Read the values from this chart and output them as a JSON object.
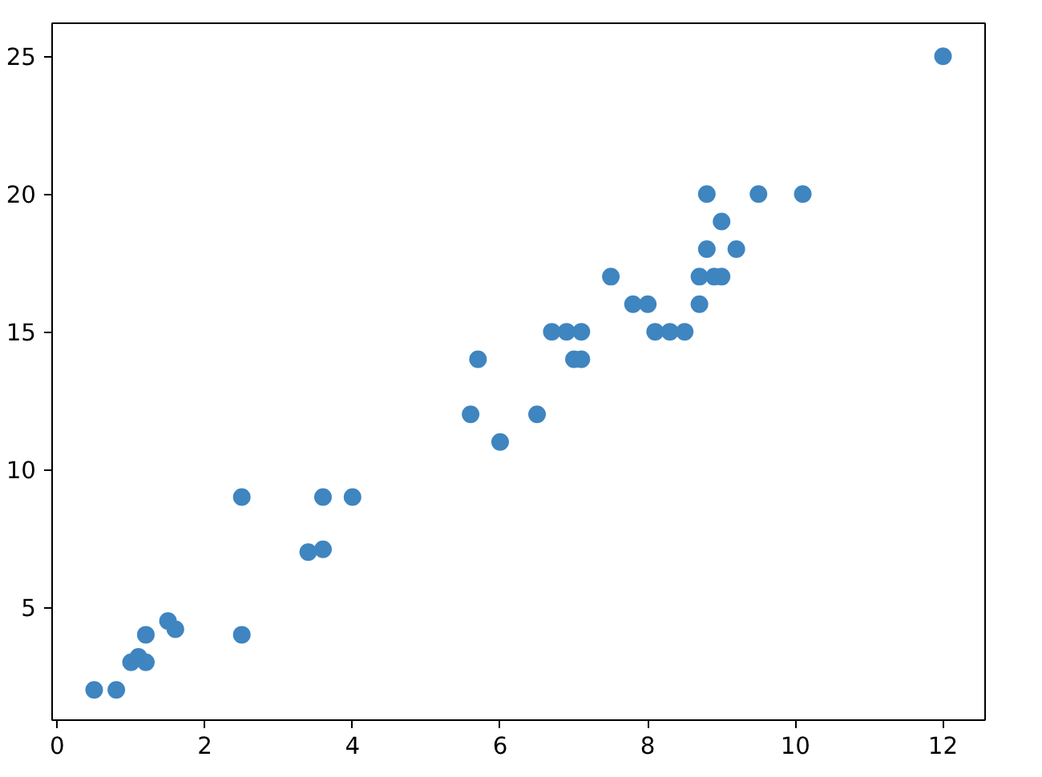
{
  "chart_data": {
    "type": "scatter",
    "marker": "circle",
    "grid": false,
    "xlim": [
      -0.07,
      12.57
    ],
    "ylim": [
      0.9,
      26.2
    ],
    "xticks": [
      0,
      2,
      4,
      6,
      8,
      10,
      12
    ],
    "yticks": [
      5,
      10,
      15,
      20,
      25
    ],
    "series": [
      {
        "color": "#3f85c0",
        "x": [
          0.5,
          0.8,
          1.0,
          1.1,
          1.2,
          1.2,
          1.5,
          1.6,
          2.5,
          2.5,
          3.4,
          3.6,
          3.6,
          4.0,
          5.6,
          5.7,
          6.0,
          6.5,
          6.7,
          6.9,
          7.0,
          7.1,
          7.1,
          7.5,
          7.8,
          8.0,
          8.1,
          8.3,
          8.5,
          8.7,
          8.7,
          8.8,
          8.8,
          8.9,
          9.0,
          9.0,
          9.2,
          9.5,
          10.1,
          12.0
        ],
        "values": [
          2,
          2,
          3,
          3.2,
          3,
          4,
          4.5,
          4.2,
          9,
          4,
          7,
          7.1,
          9,
          9,
          12,
          14,
          11,
          12,
          15,
          15,
          14,
          14,
          15,
          17,
          16,
          16,
          15,
          15,
          15,
          16,
          17,
          18,
          20,
          17,
          17,
          19,
          18,
          20,
          20,
          25
        ]
      }
    ]
  }
}
